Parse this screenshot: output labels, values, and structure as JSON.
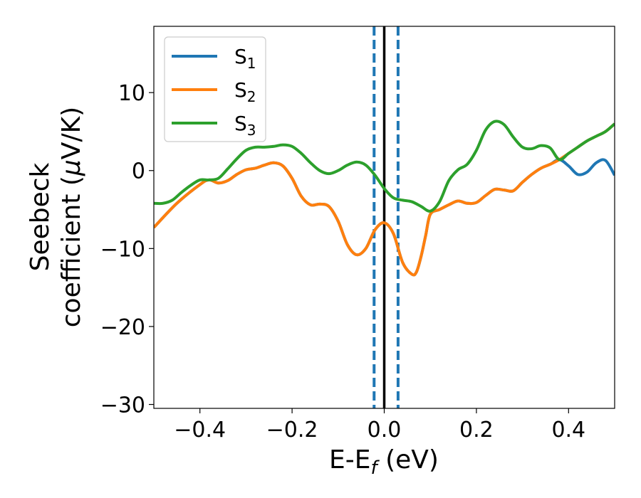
{
  "chart_data": {
    "type": "line",
    "xlabel": "E-E",
    "xlabel_sub": "f",
    "xlabel_unit": " (eV)",
    "ylabel_line1": "Seebeck",
    "ylabel_line2_prefix": "coefficient  (",
    "ylabel_mu": "μ",
    "ylabel_line2_suffix": "V/K)",
    "xlim": [
      -0.5,
      0.5
    ],
    "ylim": [
      -30.5,
      18.5
    ],
    "xticks": [
      -0.4,
      -0.2,
      0.0,
      0.2,
      0.4
    ],
    "xtick_labels": [
      "−0.4",
      "−0.2",
      "0.0",
      "0.2",
      "0.4"
    ],
    "yticks": [
      -30,
      -20,
      -10,
      0,
      10
    ],
    "ytick_labels": [
      "−30",
      "−20",
      "−10",
      "0",
      "10"
    ],
    "grid": false,
    "legend_position": "top-left",
    "reference_lines": [
      {
        "x": -0.022,
        "style": "dashed",
        "color": "#1f77b4"
      },
      {
        "x": 0.0,
        "style": "solid",
        "color": "#000000"
      },
      {
        "x": 0.03,
        "style": "dashed",
        "color": "#1f77b4"
      }
    ],
    "series": [
      {
        "name": "S",
        "sub": "1",
        "color": "#1f77b4",
        "points": [
          [
            -0.5,
            -7.3
          ],
          [
            -0.45,
            -4.2
          ],
          [
            -0.4,
            -1.8
          ],
          [
            -0.38,
            -1.2
          ],
          [
            -0.36,
            -1.6
          ],
          [
            -0.34,
            -1.3
          ],
          [
            -0.32,
            -0.5
          ],
          [
            -0.3,
            0.1
          ],
          [
            -0.28,
            0.3
          ],
          [
            -0.26,
            0.7
          ],
          [
            -0.24,
            1.0
          ],
          [
            -0.22,
            0.6
          ],
          [
            -0.2,
            -1.0
          ],
          [
            -0.18,
            -3.3
          ],
          [
            -0.16,
            -4.4
          ],
          [
            -0.14,
            -4.3
          ],
          [
            -0.12,
            -4.6
          ],
          [
            -0.1,
            -6.5
          ],
          [
            -0.08,
            -9.5
          ],
          [
            -0.06,
            -10.8
          ],
          [
            -0.04,
            -10.0
          ],
          [
            -0.02,
            -7.6
          ],
          [
            0.0,
            -6.7
          ],
          [
            0.02,
            -8.1
          ],
          [
            0.04,
            -11.8
          ],
          [
            0.06,
            -13.3
          ],
          [
            0.07,
            -13.0
          ],
          [
            0.08,
            -11.0
          ],
          [
            0.09,
            -8.3
          ],
          [
            0.1,
            -5.6
          ],
          [
            0.12,
            -5.0
          ],
          [
            0.14,
            -4.4
          ],
          [
            0.16,
            -3.9
          ],
          [
            0.18,
            -4.2
          ],
          [
            0.2,
            -4.1
          ],
          [
            0.22,
            -3.2
          ],
          [
            0.24,
            -2.4
          ],
          [
            0.26,
            -2.5
          ],
          [
            0.28,
            -2.6
          ],
          [
            0.3,
            -1.5
          ],
          [
            0.32,
            -0.5
          ],
          [
            0.34,
            0.3
          ],
          [
            0.36,
            0.8
          ],
          [
            0.38,
            1.4
          ],
          [
            0.4,
            0.6
          ],
          [
            0.42,
            -0.5
          ],
          [
            0.44,
            -0.2
          ],
          [
            0.46,
            1.0
          ],
          [
            0.48,
            1.3
          ],
          [
            0.5,
            -0.6
          ]
        ]
      },
      {
        "name": "S",
        "sub": "2",
        "color": "#ff7f0e",
        "points": [
          [
            -0.5,
            -7.3
          ],
          [
            -0.45,
            -4.2
          ],
          [
            -0.4,
            -1.8
          ],
          [
            -0.38,
            -1.2
          ],
          [
            -0.36,
            -1.6
          ],
          [
            -0.34,
            -1.3
          ],
          [
            -0.32,
            -0.5
          ],
          [
            -0.3,
            0.1
          ],
          [
            -0.28,
            0.3
          ],
          [
            -0.26,
            0.7
          ],
          [
            -0.24,
            1.0
          ],
          [
            -0.22,
            0.6
          ],
          [
            -0.2,
            -1.0
          ],
          [
            -0.18,
            -3.3
          ],
          [
            -0.16,
            -4.4
          ],
          [
            -0.14,
            -4.3
          ],
          [
            -0.12,
            -4.6
          ],
          [
            -0.1,
            -6.5
          ],
          [
            -0.08,
            -9.5
          ],
          [
            -0.06,
            -10.8
          ],
          [
            -0.04,
            -10.0
          ],
          [
            -0.02,
            -7.6
          ],
          [
            0.0,
            -6.7
          ],
          [
            0.02,
            -8.1
          ],
          [
            0.04,
            -11.8
          ],
          [
            0.06,
            -13.3
          ],
          [
            0.07,
            -13.0
          ],
          [
            0.08,
            -11.0
          ],
          [
            0.09,
            -8.3
          ],
          [
            0.1,
            -5.6
          ],
          [
            0.12,
            -5.0
          ],
          [
            0.14,
            -4.4
          ],
          [
            0.16,
            -3.9
          ],
          [
            0.18,
            -4.2
          ],
          [
            0.2,
            -4.1
          ],
          [
            0.22,
            -3.2
          ],
          [
            0.24,
            -2.4
          ],
          [
            0.26,
            -2.5
          ],
          [
            0.28,
            -2.6
          ],
          [
            0.3,
            -1.5
          ],
          [
            0.32,
            -0.5
          ],
          [
            0.34,
            0.3
          ],
          [
            0.36,
            0.8
          ],
          [
            0.38,
            1.4
          ],
          [
            0.4,
            2.2
          ],
          [
            0.42,
            3.0
          ],
          [
            0.44,
            3.8
          ],
          [
            0.46,
            4.4
          ],
          [
            0.48,
            5.0
          ],
          [
            0.5,
            6.0
          ]
        ]
      },
      {
        "name": "S",
        "sub": "3",
        "color": "#2ca02c",
        "points": [
          [
            -0.5,
            -4.2
          ],
          [
            -0.48,
            -4.2
          ],
          [
            -0.46,
            -3.8
          ],
          [
            -0.44,
            -2.8
          ],
          [
            -0.42,
            -1.9
          ],
          [
            -0.4,
            -1.2
          ],
          [
            -0.38,
            -1.2
          ],
          [
            -0.36,
            -1.0
          ],
          [
            -0.34,
            0.2
          ],
          [
            -0.32,
            1.5
          ],
          [
            -0.3,
            2.6
          ],
          [
            -0.28,
            3.0
          ],
          [
            -0.26,
            3.0
          ],
          [
            -0.24,
            3.1
          ],
          [
            -0.22,
            3.3
          ],
          [
            -0.2,
            3.1
          ],
          [
            -0.18,
            2.2
          ],
          [
            -0.16,
            1.0
          ],
          [
            -0.14,
            0.0
          ],
          [
            -0.12,
            -0.4
          ],
          [
            -0.1,
            0.0
          ],
          [
            -0.08,
            0.7
          ],
          [
            -0.06,
            1.1
          ],
          [
            -0.04,
            0.7
          ],
          [
            -0.02,
            -0.6
          ],
          [
            0.0,
            -2.3
          ],
          [
            0.02,
            -3.5
          ],
          [
            0.04,
            -3.8
          ],
          [
            0.06,
            -4.0
          ],
          [
            0.08,
            -4.6
          ],
          [
            0.1,
            -5.2
          ],
          [
            0.12,
            -4.0
          ],
          [
            0.14,
            -1.3
          ],
          [
            0.16,
            0.1
          ],
          [
            0.18,
            0.8
          ],
          [
            0.2,
            2.6
          ],
          [
            0.22,
            5.2
          ],
          [
            0.24,
            6.3
          ],
          [
            0.26,
            5.9
          ],
          [
            0.28,
            4.3
          ],
          [
            0.3,
            3.0
          ],
          [
            0.32,
            2.8
          ],
          [
            0.34,
            3.2
          ],
          [
            0.36,
            2.9
          ],
          [
            0.38,
            1.4
          ],
          [
            0.4,
            2.2
          ],
          [
            0.42,
            3.0
          ],
          [
            0.44,
            3.8
          ],
          [
            0.46,
            4.4
          ],
          [
            0.48,
            5.0
          ],
          [
            0.5,
            6.0
          ]
        ]
      }
    ]
  }
}
